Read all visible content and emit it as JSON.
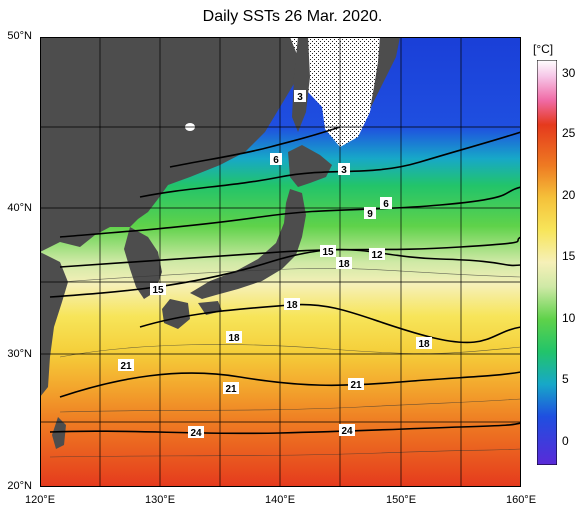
{
  "title": "Daily SSTs 26 Mar. 2020.",
  "colorbar": {
    "unit_label": "[°C]",
    "ticks": [
      "30",
      "25",
      "20",
      "15",
      "10",
      "5",
      "0"
    ]
  },
  "axes": {
    "lat_labels": [
      "50°N",
      "40°N",
      "30°N",
      "20°N"
    ],
    "lon_labels": [
      "120°E",
      "130°E",
      "140°E",
      "150°E",
      "160°E"
    ]
  },
  "contour_labels": [
    "3",
    "6",
    "3",
    "6",
    "9",
    "12",
    "15",
    "18",
    "15",
    "18",
    "18",
    "21",
    "21",
    "21",
    "24",
    "24"
  ],
  "colors": {
    "land": "#4d4d4d",
    "ice": "#ffffff",
    "grid": "#000000"
  }
}
